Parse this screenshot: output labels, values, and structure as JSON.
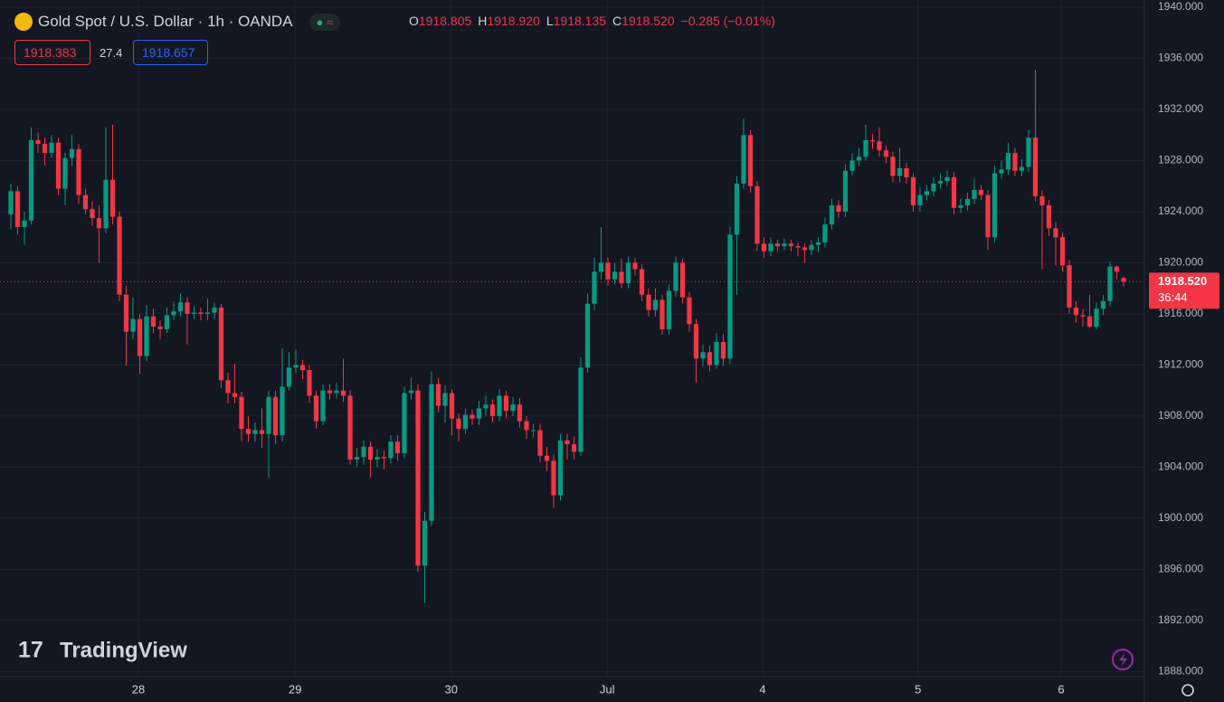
{
  "chart_data": {
    "type": "candlestick",
    "title": "Gold Spot / U.S. Dollar · 1h · OANDA",
    "ohlc_legend": [
      {
        "label": "O",
        "value": "1918.805"
      },
      {
        "label": "H",
        "value": "1918.920"
      },
      {
        "label": "L",
        "value": "1918.135"
      },
      {
        "label": "C",
        "value": "1918.520"
      }
    ],
    "change": "−0.285 (−0.01%)",
    "bid": "1918.383",
    "spread": "27.4",
    "ask": "1918.657",
    "last_price_label": "1918.520",
    "countdown": "36:44",
    "brand": "TradingView",
    "up_color": "#089981",
    "down_color": "#f23645",
    "grid": true,
    "x": [
      0,
      1,
      2,
      3,
      4,
      5,
      6,
      7,
      8,
      9,
      10,
      11,
      12,
      13,
      14,
      15,
      16,
      17,
      18,
      19,
      20,
      21,
      22,
      23,
      24,
      25,
      26,
      27,
      28,
      29,
      30,
      31,
      32,
      33,
      34,
      35,
      36,
      37,
      38,
      39,
      40,
      41,
      42,
      43,
      44,
      45,
      46,
      47,
      48,
      49,
      50,
      51,
      52,
      53,
      54,
      55,
      56,
      57,
      58,
      59,
      60,
      61,
      62,
      63,
      64,
      65,
      66,
      67,
      68,
      69,
      70,
      71,
      72,
      73,
      74,
      75,
      76,
      77,
      78,
      79,
      80,
      81,
      82,
      83,
      84,
      85,
      86,
      87,
      88,
      89,
      90,
      91,
      92,
      93,
      94,
      95,
      96,
      97,
      98,
      99,
      100,
      101,
      102,
      103,
      104,
      105,
      106,
      107,
      108,
      109,
      110,
      111,
      112,
      113,
      114,
      115,
      116,
      117,
      118,
      119,
      120,
      121,
      122,
      123,
      124,
      125,
      126,
      127,
      128,
      129,
      130,
      131,
      132,
      133,
      134,
      135,
      136,
      137,
      138,
      139,
      140,
      141,
      142,
      143,
      144,
      145,
      146,
      147,
      148,
      149,
      150,
      151,
      152,
      153,
      154,
      155,
      156,
      157,
      158,
      159,
      160,
      161,
      162,
      163,
      164
    ],
    "open": [
      1923.8,
      1925.6,
      1922.8,
      1923.3,
      1929.6,
      1929.3,
      1928.6,
      1929.4,
      1925.8,
      1928.2,
      1928.9,
      1925.3,
      1924.2,
      1923.5,
      1922.7,
      1926.5,
      1923.6,
      1917.5,
      1914.6,
      1915.6,
      1912.7,
      1915.8,
      1915.0,
      1914.8,
      1915.9,
      1916.2,
      1916.9,
      1916.0,
      1916.1,
      1916.0,
      1916.1,
      1916.5,
      1910.8,
      1909.8,
      1909.5,
      1907.0,
      1906.6,
      1906.9,
      1906.6,
      1909.5,
      1906.5,
      1910.3,
      1911.8,
      1912.0,
      1911.6,
      1909.6,
      1907.6,
      1910.0,
      1909.8,
      1910.0,
      1909.6,
      1904.6,
      1904.8,
      1905.6,
      1904.6,
      1904.8,
      1904.7,
      1906.0,
      1905.1,
      1909.8,
      1910.0,
      1896.3,
      1899.8,
      1910.5,
      1908.8,
      1909.8,
      1907.8,
      1907.0,
      1908.1,
      1907.8,
      1908.6,
      1908.9,
      1908.0,
      1909.6,
      1908.4,
      1908.9,
      1907.6,
      1906.9,
      1906.9,
      1904.9,
      1904.5,
      1901.8,
      1906.1,
      1905.8,
      1905.2,
      1911.8,
      1916.8,
      1919.3,
      1920.0,
      1918.7,
      1919.3,
      1918.4,
      1920.0,
      1919.5,
      1917.5,
      1916.3,
      1917.1,
      1914.8,
      1917.8,
      1920.0,
      1917.3,
      1915.2,
      1912.5,
      1913.0,
      1912.0,
      1913.8,
      1912.5,
      1922.2,
      1926.2,
      1930.0,
      1926.0,
      1921.5,
      1920.9,
      1921.5,
      1921.3,
      1921.5,
      1921.3,
      1921.2,
      1921.0,
      1921.4,
      1921.6,
      1923.0,
      1924.5,
      1924.0,
      1927.2,
      1928.0,
      1928.3,
      1929.6,
      1929.5,
      1928.8,
      1928.3,
      1926.8,
      1927.4,
      1926.7,
      1924.5,
      1925.3,
      1925.6,
      1926.2,
      1926.4,
      1926.7,
      1924.3,
      1924.5,
      1925.0,
      1925.7,
      1925.3,
      1922.0,
      1927.0,
      1927.3,
      1928.6,
      1927.2,
      1927.5,
      1929.8,
      1925.2,
      1924.5,
      1922.7,
      1922.0,
      1919.8,
      1916.5,
      1915.9,
      1915.8,
      1915.0,
      1916.4,
      1917.0,
      1919.7,
      1918.805
    ],
    "high": [
      1926.2,
      1926.0,
      1924.0,
      1930.6,
      1930.2,
      1929.8,
      1930.0,
      1929.8,
      1928.6,
      1930.0,
      1929.3,
      1925.8,
      1924.8,
      1924.5,
      1930.6,
      1930.8,
      1924.0,
      1918.2,
      1917.3,
      1916.0,
      1916.7,
      1916.4,
      1915.5,
      1916.5,
      1917.0,
      1917.6,
      1917.3,
      1916.6,
      1916.5,
      1917.2,
      1916.9,
      1916.8,
      1911.4,
      1912.1,
      1909.9,
      1908.0,
      1907.5,
      1908.6,
      1910.0,
      1910.0,
      1913.3,
      1913.0,
      1913.2,
      1912.4,
      1912.0,
      1910.0,
      1910.5,
      1910.5,
      1910.6,
      1912.5,
      1910.0,
      1905.5,
      1906.1,
      1906.0,
      1905.4,
      1905.3,
      1906.5,
      1906.5,
      1910.3,
      1911.0,
      1910.5,
      1900.5,
      1911.5,
      1911.0,
      1910.4,
      1910.1,
      1908.2,
      1908.6,
      1908.5,
      1909.2,
      1909.6,
      1909.3,
      1910.1,
      1910.0,
      1909.5,
      1909.4,
      1908.0,
      1907.4,
      1907.4,
      1905.6,
      1905.0,
      1906.6,
      1906.6,
      1906.4,
      1912.6,
      1917.6,
      1920.4,
      1922.8,
      1920.4,
      1920.0,
      1920.3,
      1920.5,
      1920.4,
      1919.9,
      1918.0,
      1918.0,
      1917.5,
      1918.3,
      1920.5,
      1920.3,
      1917.7,
      1915.6,
      1913.6,
      1913.5,
      1914.5,
      1914.4,
      1922.8,
      1926.8,
      1931.3,
      1930.4,
      1926.4,
      1922.0,
      1922.0,
      1921.8,
      1921.9,
      1921.8,
      1921.6,
      1921.5,
      1921.8,
      1922.0,
      1923.5,
      1925.0,
      1924.9,
      1927.7,
      1928.6,
      1929.0,
      1930.8,
      1930.1,
      1930.6,
      1929.2,
      1928.7,
      1929.0,
      1927.8,
      1927.0,
      1925.9,
      1926.1,
      1926.7,
      1927.0,
      1927.2,
      1927.1,
      1925.0,
      1925.5,
      1926.6,
      1926.1,
      1925.7,
      1927.6,
      1928.0,
      1929.4,
      1929.0,
      1928.1,
      1930.4,
      1935.1,
      1925.7,
      1924.9,
      1923.2,
      1922.4,
      1920.2,
      1917.0,
      1916.4,
      1917.5,
      1916.9,
      1917.5,
      1920.1,
      1919.8,
      1918.92
    ],
    "low": [
      1922.6,
      1922.2,
      1921.4,
      1923.0,
      1928.6,
      1927.6,
      1928.2,
      1925.3,
      1924.5,
      1927.6,
      1924.6,
      1923.8,
      1922.9,
      1920.0,
      1922.3,
      1923.0,
      1917.0,
      1911.9,
      1914.0,
      1911.3,
      1912.3,
      1914.5,
      1914.0,
      1914.5,
      1915.5,
      1915.8,
      1913.6,
      1915.6,
      1915.5,
      1915.5,
      1915.6,
      1910.2,
      1909.0,
      1909.0,
      1906.0,
      1906.0,
      1906.0,
      1905.5,
      1903.2,
      1905.8,
      1906.0,
      1910.0,
      1911.4,
      1910.9,
      1909.0,
      1907.0,
      1907.3,
      1909.3,
      1909.4,
      1909.1,
      1904.2,
      1904.0,
      1904.2,
      1903.2,
      1904.0,
      1903.8,
      1904.3,
      1904.5,
      1904.7,
      1909.3,
      1895.8,
      1893.4,
      1899.4,
      1908.3,
      1907.5,
      1906.5,
      1906.0,
      1906.6,
      1907.3,
      1907.3,
      1908.0,
      1907.5,
      1907.6,
      1907.8,
      1908.0,
      1907.1,
      1906.2,
      1906.3,
      1904.4,
      1903.7,
      1900.8,
      1901.4,
      1904.6,
      1904.6,
      1904.9,
      1911.4,
      1916.3,
      1918.7,
      1918.2,
      1918.3,
      1918.0,
      1918.0,
      1919.0,
      1917.0,
      1915.8,
      1915.8,
      1914.4,
      1914.4,
      1917.3,
      1916.8,
      1914.6,
      1910.6,
      1911.9,
      1911.5,
      1911.7,
      1911.9,
      1912.1,
      1917.5,
      1925.8,
      1925.5,
      1920.9,
      1920.4,
      1920.5,
      1920.9,
      1921.0,
      1920.9,
      1920.5,
      1920.0,
      1920.6,
      1920.8,
      1921.2,
      1922.6,
      1923.5,
      1923.6,
      1926.8,
      1927.6,
      1928.0,
      1928.9,
      1928.3,
      1927.8,
      1926.3,
      1926.3,
      1926.2,
      1924.0,
      1924.0,
      1924.9,
      1925.2,
      1925.8,
      1926.0,
      1923.8,
      1923.9,
      1924.1,
      1924.6,
      1924.9,
      1921.0,
      1921.6,
      1926.6,
      1926.9,
      1926.8,
      1926.8,
      1927.1,
      1924.8,
      1919.5,
      1922.1,
      1919.8,
      1919.3,
      1916.0,
      1915.3,
      1915.0,
      1914.9,
      1914.8,
      1915.9,
      1916.6,
      1918.7,
      1918.135
    ],
    "close": [
      1925.6,
      1922.8,
      1923.3,
      1929.6,
      1929.3,
      1928.6,
      1929.4,
      1925.8,
      1928.2,
      1928.9,
      1925.3,
      1924.2,
      1923.5,
      1922.7,
      1926.5,
      1923.6,
      1917.5,
      1914.6,
      1915.6,
      1912.7,
      1915.8,
      1915.0,
      1914.8,
      1915.9,
      1916.2,
      1916.9,
      1916.0,
      1916.1,
      1916.0,
      1916.1,
      1916.5,
      1910.8,
      1909.8,
      1909.5,
      1907.0,
      1906.6,
      1906.9,
      1906.6,
      1909.5,
      1906.5,
      1910.3,
      1911.8,
      1912.0,
      1911.6,
      1909.6,
      1907.6,
      1910.0,
      1909.8,
      1910.0,
      1909.6,
      1904.6,
      1904.8,
      1905.6,
      1904.6,
      1904.8,
      1904.7,
      1906.0,
      1905.1,
      1909.8,
      1910.0,
      1896.3,
      1899.8,
      1910.5,
      1908.8,
      1909.8,
      1907.8,
      1907.0,
      1908.1,
      1907.8,
      1908.6,
      1908.9,
      1908.0,
      1909.6,
      1908.4,
      1908.9,
      1907.6,
      1906.9,
      1906.9,
      1904.9,
      1904.5,
      1901.8,
      1906.1,
      1905.8,
      1905.2,
      1911.8,
      1916.8,
      1919.3,
      1920.0,
      1918.7,
      1919.3,
      1918.4,
      1920.0,
      1919.5,
      1917.5,
      1916.3,
      1917.1,
      1914.8,
      1917.8,
      1920.0,
      1917.3,
      1915.2,
      1912.5,
      1913.0,
      1912.0,
      1913.8,
      1912.5,
      1922.2,
      1926.2,
      1930.0,
      1926.0,
      1921.5,
      1920.9,
      1921.5,
      1921.3,
      1921.5,
      1921.3,
      1921.2,
      1921.0,
      1921.4,
      1921.6,
      1923.0,
      1924.5,
      1924.0,
      1927.2,
      1928.0,
      1928.3,
      1929.6,
      1929.5,
      1928.8,
      1928.3,
      1926.8,
      1927.4,
      1926.7,
      1924.5,
      1925.3,
      1925.6,
      1926.2,
      1926.4,
      1926.7,
      1924.3,
      1924.5,
      1925.0,
      1925.7,
      1925.3,
      1922.0,
      1927.0,
      1927.3,
      1928.6,
      1927.2,
      1927.5,
      1929.8,
      1925.2,
      1924.5,
      1922.7,
      1922.0,
      1919.8,
      1916.5,
      1915.9,
      1915.8,
      1915.0,
      1916.4,
      1917.0,
      1919.7,
      1919.3,
      1918.52
    ],
    "xlim": [
      -1.6,
      167.07
    ],
    "ylim": [
      1887.6,
      1940.57
    ],
    "xticks": [
      {
        "value": 18.8,
        "label": "28"
      },
      {
        "value": 41.9,
        "label": "29"
      },
      {
        "value": 64.9,
        "label": "30"
      },
      {
        "value": 87.9,
        "label": "Jul"
      },
      {
        "value": 110.8,
        "label": "4"
      },
      {
        "value": 133.7,
        "label": "5"
      },
      {
        "value": 154.8,
        "label": "6"
      }
    ],
    "yticks": [
      {
        "value": 1888,
        "label": "1888.000"
      },
      {
        "value": 1892,
        "label": "1892.000"
      },
      {
        "value": 1896,
        "label": "1896.000"
      },
      {
        "value": 1900,
        "label": "1900.000"
      },
      {
        "value": 1904,
        "label": "1904.000"
      },
      {
        "value": 1908,
        "label": "1908.000"
      },
      {
        "value": 1912,
        "label": "1912.000"
      },
      {
        "value": 1916,
        "label": "1916.000"
      },
      {
        "value": 1920,
        "label": "1920.000"
      },
      {
        "value": 1924,
        "label": "1924.000"
      },
      {
        "value": 1928,
        "label": "1928.000"
      },
      {
        "value": 1932,
        "label": "1932.000"
      },
      {
        "value": 1936,
        "label": "1936.000"
      },
      {
        "value": 1940,
        "label": "1940.000"
      }
    ]
  }
}
